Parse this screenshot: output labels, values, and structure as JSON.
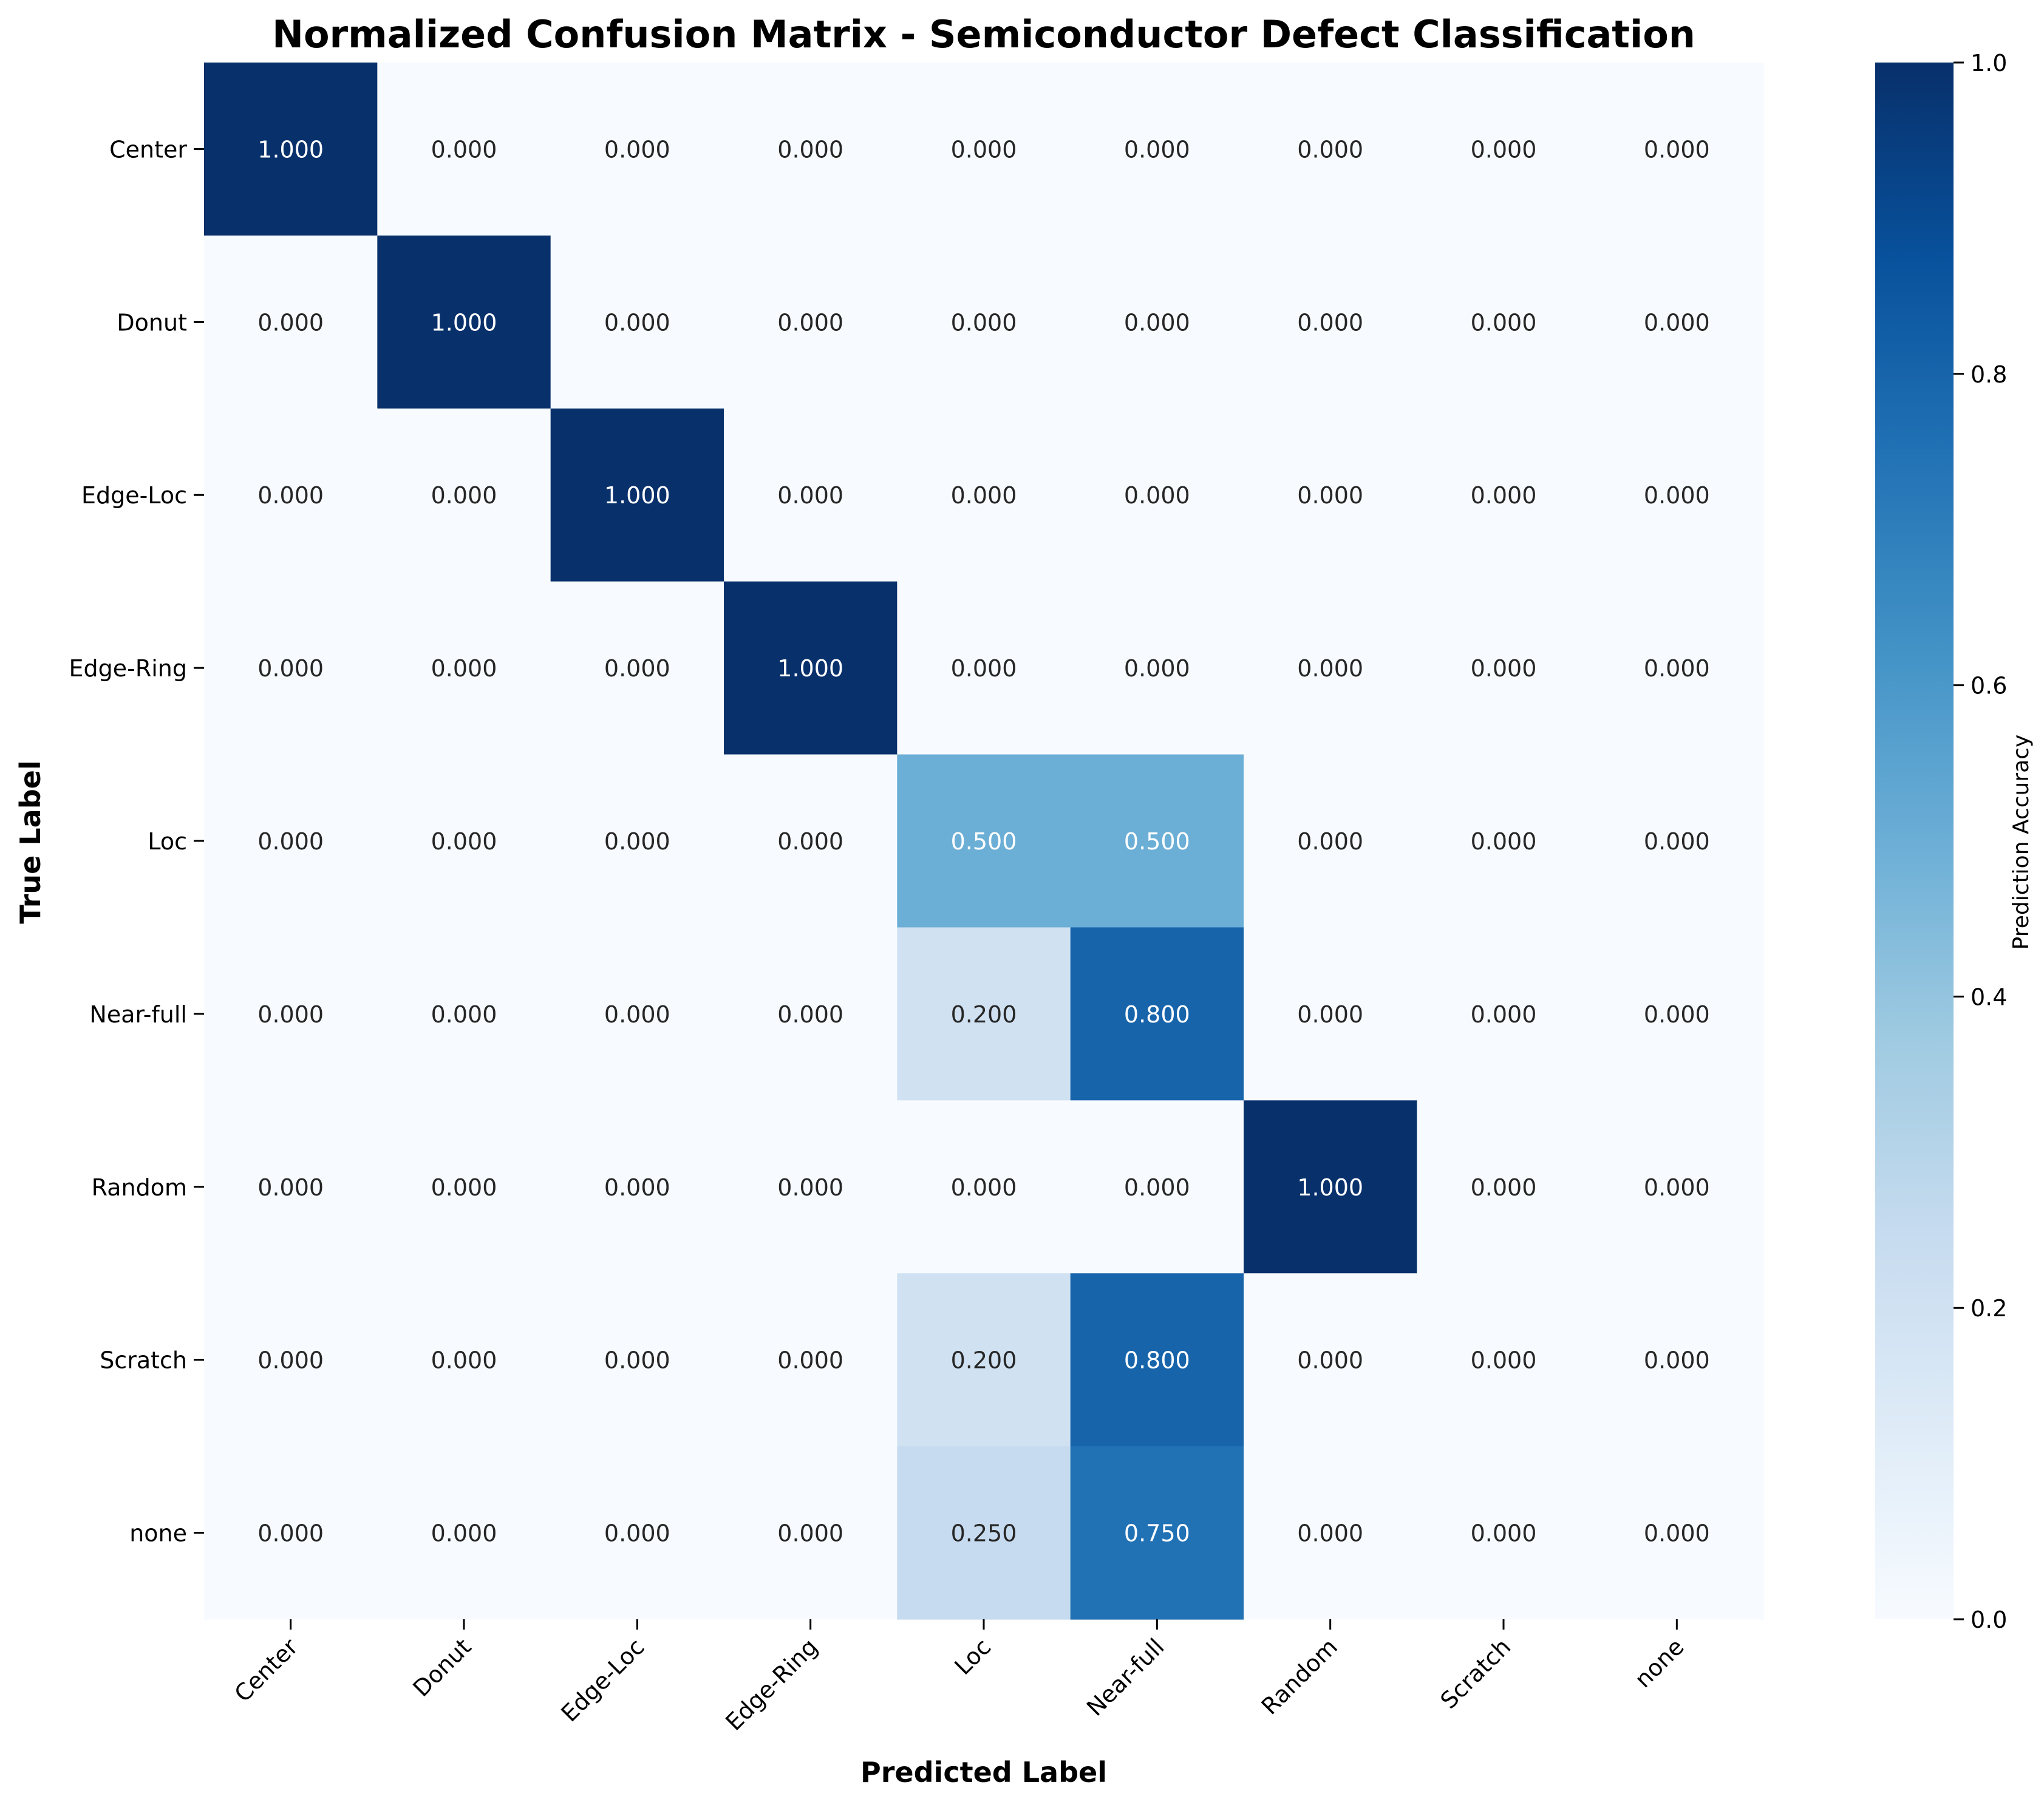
{
  "chart_data": {
    "type": "heatmap",
    "title": "Normalized Confusion Matrix - Semiconductor Defect Classification",
    "xlabel": "Predicted Label",
    "ylabel": "True Label",
    "x_categories": [
      "Center",
      "Donut",
      "Edge-Loc",
      "Edge-Ring",
      "Loc",
      "Near-full",
      "Random",
      "Scratch",
      "none"
    ],
    "y_categories": [
      "Center",
      "Donut",
      "Edge-Loc",
      "Edge-Ring",
      "Loc",
      "Near-full",
      "Random",
      "Scratch",
      "none"
    ],
    "values": [
      [
        1.0,
        0.0,
        0.0,
        0.0,
        0.0,
        0.0,
        0.0,
        0.0,
        0.0
      ],
      [
        0.0,
        1.0,
        0.0,
        0.0,
        0.0,
        0.0,
        0.0,
        0.0,
        0.0
      ],
      [
        0.0,
        0.0,
        1.0,
        0.0,
        0.0,
        0.0,
        0.0,
        0.0,
        0.0
      ],
      [
        0.0,
        0.0,
        0.0,
        1.0,
        0.0,
        0.0,
        0.0,
        0.0,
        0.0
      ],
      [
        0.0,
        0.0,
        0.0,
        0.0,
        0.5,
        0.5,
        0.0,
        0.0,
        0.0
      ],
      [
        0.0,
        0.0,
        0.0,
        0.0,
        0.2,
        0.8,
        0.0,
        0.0,
        0.0
      ],
      [
        0.0,
        0.0,
        0.0,
        0.0,
        0.0,
        0.0,
        1.0,
        0.0,
        0.0
      ],
      [
        0.0,
        0.0,
        0.0,
        0.0,
        0.2,
        0.8,
        0.0,
        0.0,
        0.0
      ],
      [
        0.0,
        0.0,
        0.0,
        0.0,
        0.25,
        0.75,
        0.0,
        0.0,
        0.0
      ]
    ],
    "value_format": "3 decimals",
    "colormap": "Blues",
    "colorbar": {
      "label": "Prediction Accuracy",
      "range": [
        0.0,
        1.0
      ],
      "ticks": [
        0.0,
        0.2,
        0.4,
        0.6,
        0.8,
        1.0
      ],
      "tick_labels": [
        "0.0",
        "0.2",
        "0.4",
        "0.6",
        "0.8",
        "1.0"
      ]
    },
    "colors": {
      "low": "#f7fbff",
      "high": "#08306b",
      "text_on_dark": "#ffffff",
      "text_on_light": "#262626"
    }
  }
}
